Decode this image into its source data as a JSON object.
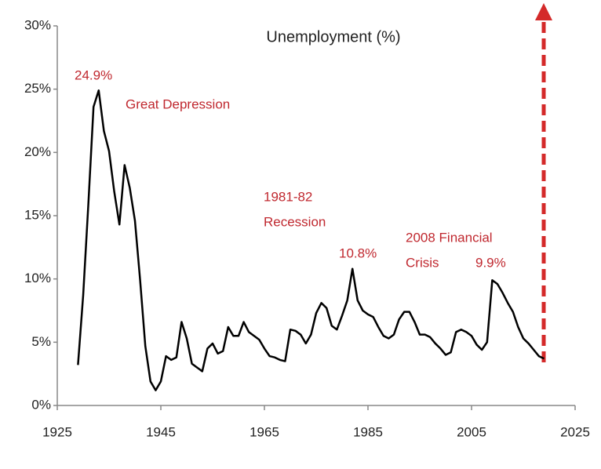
{
  "chart_data": {
    "type": "line",
    "title": "Unemployment (%)",
    "annotations": [
      "24.9%",
      "Great Depression",
      "1981-82",
      "Recession",
      "10.8%",
      "2008 Financial",
      "Crisis",
      "9.9%"
    ],
    "x": [
      1929,
      1930,
      1931,
      1932,
      1933,
      1934,
      1935,
      1936,
      1937,
      1938,
      1939,
      1940,
      1941,
      1942,
      1943,
      1944,
      1945,
      1946,
      1947,
      1948,
      1949,
      1950,
      1951,
      1952,
      1953,
      1954,
      1955,
      1956,
      1957,
      1958,
      1959,
      1960,
      1961,
      1962,
      1963,
      1964,
      1965,
      1966,
      1967,
      1968,
      1969,
      1970,
      1971,
      1972,
      1973,
      1974,
      1975,
      1976,
      1977,
      1978,
      1979,
      1980,
      1981,
      1982,
      1983,
      1984,
      1985,
      1986,
      1987,
      1988,
      1989,
      1990,
      1991,
      1992,
      1993,
      1994,
      1995,
      1996,
      1997,
      1998,
      1999,
      2000,
      2001,
      2002,
      2003,
      2004,
      2005,
      2006,
      2007,
      2008,
      2009,
      2010,
      2011,
      2012,
      2013,
      2014,
      2015,
      2016,
      2017,
      2018,
      2019
    ],
    "values": [
      3.2,
      8.7,
      15.9,
      23.6,
      24.9,
      21.7,
      20.1,
      16.9,
      14.3,
      19.0,
      17.2,
      14.6,
      9.9,
      4.7,
      1.9,
      1.2,
      1.9,
      3.9,
      3.6,
      3.8,
      6.6,
      5.3,
      3.3,
      3.0,
      2.7,
      4.5,
      4.9,
      4.1,
      4.3,
      6.2,
      5.5,
      5.5,
      6.6,
      5.8,
      5.5,
      5.2,
      4.5,
      3.9,
      3.8,
      3.6,
      3.5,
      6.0,
      5.9,
      5.6,
      4.9,
      5.6,
      7.3,
      8.1,
      7.7,
      6.3,
      6.0,
      7.1,
      8.3,
      10.8,
      8.3,
      7.5,
      7.2,
      7.0,
      6.2,
      5.5,
      5.3,
      5.6,
      6.8,
      7.4,
      7.4,
      6.6,
      5.6,
      5.6,
      5.4,
      4.9,
      4.5,
      4.0,
      4.2,
      5.8,
      6.0,
      5.8,
      5.5,
      4.8,
      4.4,
      5.0,
      9.9,
      9.6,
      8.9,
      8.1,
      7.4,
      6.2,
      5.3,
      4.9,
      4.4,
      3.9,
      3.7
    ],
    "color": "#000000",
    "xlim": [
      1925,
      2025
    ],
    "xticks": [
      1925,
      1945,
      1965,
      1985,
      2005,
      2025
    ],
    "ylim": [
      0,
      30
    ],
    "yticks": [
      {
        "value": 0,
        "label": "0%"
      },
      {
        "value": 5,
        "label": "5%"
      },
      {
        "value": 10,
        "label": "10%"
      },
      {
        "value": 15,
        "label": "15%"
      },
      {
        "value": 20,
        "label": "20%"
      },
      {
        "value": 25,
        "label": "25%"
      },
      {
        "value": 30,
        "label": "30%"
      }
    ],
    "grid": false
  }
}
